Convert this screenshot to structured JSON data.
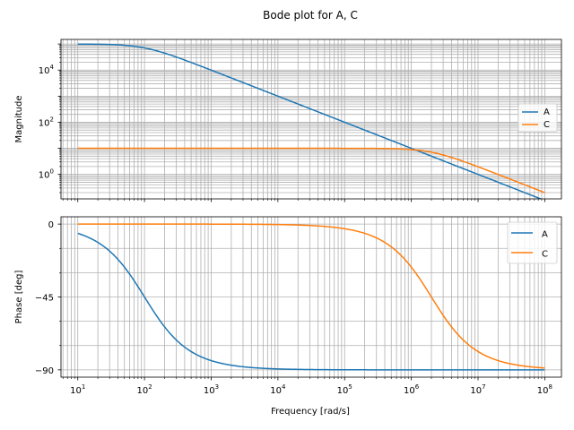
{
  "chart_data": {
    "type": "line",
    "title": "Bode plot for A, C",
    "xlabel": "Frequency [rad/s]",
    "xscale": "log",
    "xlim": [
      5.6,
      178000000.0
    ],
    "x_tick_labels": [
      {
        "base": "10",
        "exp": "1"
      },
      {
        "base": "10",
        "exp": "2"
      },
      {
        "base": "10",
        "exp": "3"
      },
      {
        "base": "10",
        "exp": "4"
      },
      {
        "base": "10",
        "exp": "5"
      },
      {
        "base": "10",
        "exp": "6"
      },
      {
        "base": "10",
        "exp": "7"
      },
      {
        "base": "10",
        "exp": "8"
      }
    ],
    "subplots": [
      {
        "name": "magnitude",
        "ylabel": "Magnitude",
        "yscale": "log",
        "ylim": [
          0.115,
          150000
        ],
        "y_tick_labels": [
          {
            "base": "10",
            "exp": "0"
          },
          {
            "base": "10",
            "exp": "2"
          },
          {
            "base": "10",
            "exp": "4"
          }
        ],
        "legend": {
          "position": "center-right",
          "size": "small",
          "entries": [
            "A",
            "C"
          ]
        },
        "grid": true,
        "series": [
          {
            "name": "A",
            "color": "#1f77b4",
            "formula": "|100000 / (1 + j w/100)|",
            "x_range": [
              10,
              100000000.0
            ]
          },
          {
            "name": "C",
            "color": "#ff7f0e",
            "formula": "|10 / (1 + j w/2e6)|",
            "x_range": [
              10,
              100000000.0
            ]
          }
        ]
      },
      {
        "name": "phase",
        "ylabel": "Phase [deg]",
        "yscale": "linear",
        "ylim": [
          -94.5,
          4.5
        ],
        "y_tick_labels": [
          "0",
          "−45",
          "−90"
        ],
        "legend": {
          "position": "top-right",
          "size": "normal",
          "entries": [
            "A",
            "C"
          ]
        },
        "grid": true,
        "series": [
          {
            "name": "A",
            "color": "#1f77b4",
            "formula": "-atan(w/100) deg",
            "x_range": [
              10,
              100000000.0
            ]
          },
          {
            "name": "C",
            "color": "#ff7f0e",
            "formula": "-atan(w/2e6) deg",
            "x_range": [
              10,
              100000000.0
            ]
          }
        ]
      }
    ]
  }
}
